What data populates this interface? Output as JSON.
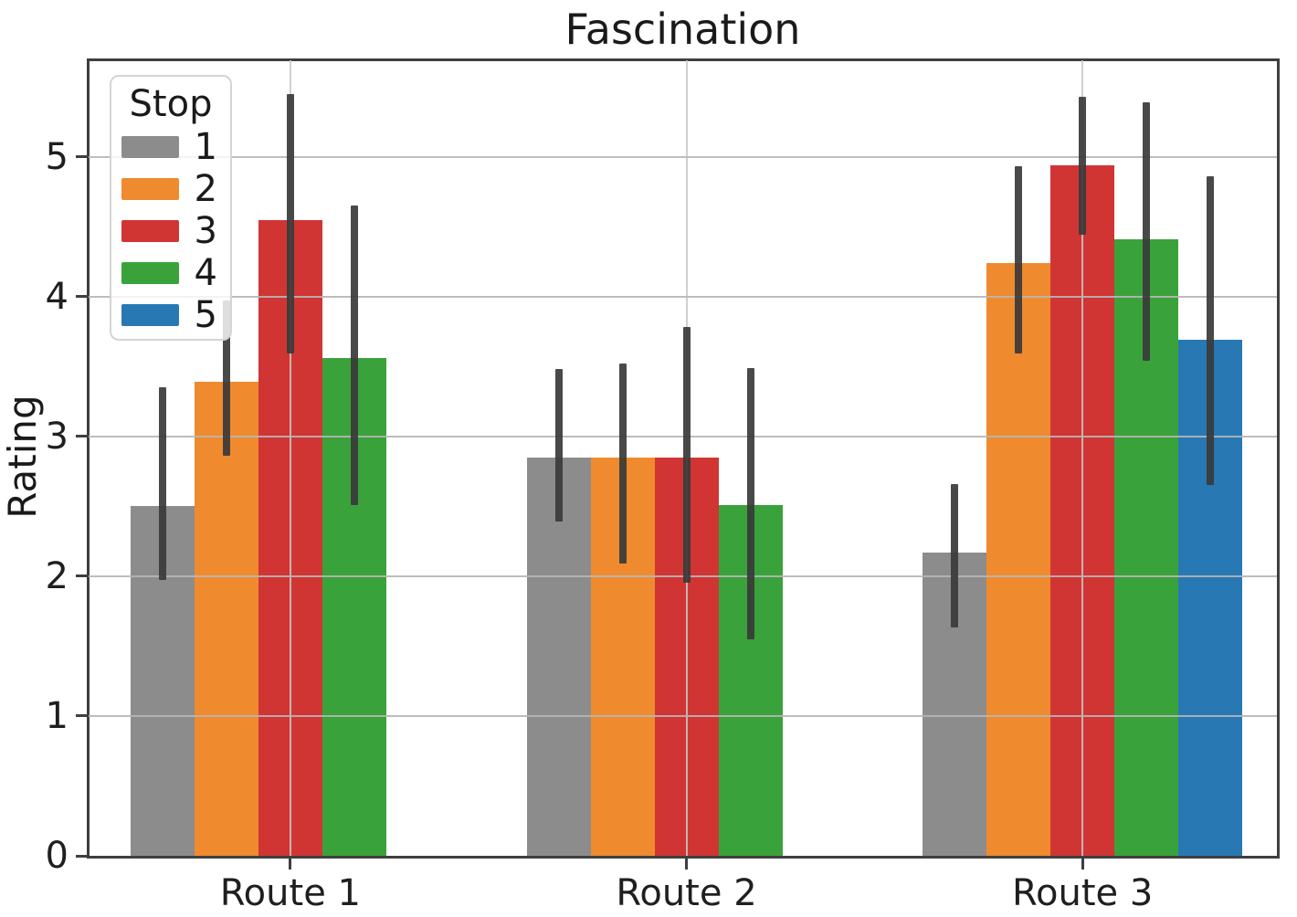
{
  "title": "Fascination",
  "axes": {
    "ylabel": "Rating",
    "ytick_labels": [
      "0",
      "1",
      "2",
      "3",
      "4",
      "5"
    ],
    "xtick_labels": [
      "Route 1",
      "Route 2",
      "Route 3"
    ]
  },
  "legend": {
    "title": "Stop",
    "entries": [
      {
        "label": "1",
        "color": "#8c8c8c"
      },
      {
        "label": "2",
        "color": "#ef8b2e"
      },
      {
        "label": "3",
        "color": "#d03534"
      },
      {
        "label": "4",
        "color": "#3aa23a"
      },
      {
        "label": "5",
        "color": "#2878b4"
      }
    ]
  },
  "style_colors": {
    "grid": "#b6b6b6",
    "spine": "#3f3f3f",
    "error_bar": "#3a3a3a"
  },
  "chart_data": {
    "type": "bar",
    "title": "Fascination",
    "xlabel": "",
    "ylabel": "Rating",
    "categories": [
      "Route 1",
      "Route 2",
      "Route 3"
    ],
    "ylim": [
      0,
      5.69
    ],
    "yticks": [
      0,
      1,
      2,
      3,
      4,
      5
    ],
    "grid": true,
    "legend_position": "upper left",
    "legend_title": "Stop",
    "series": [
      {
        "name": "1",
        "color": "#8c8c8c",
        "values": [
          2.5,
          2.85,
          2.17
        ],
        "err_low": [
          1.97,
          2.39,
          1.63
        ],
        "err_high": [
          3.35,
          3.48,
          2.66
        ]
      },
      {
        "name": "2",
        "color": "#ef8b2e",
        "values": [
          3.39,
          2.85,
          4.24
        ],
        "err_low": [
          2.86,
          2.09,
          3.59
        ],
        "err_high": [
          3.97,
          3.52,
          4.93
        ]
      },
      {
        "name": "3",
        "color": "#d03534",
        "values": [
          4.55,
          2.85,
          4.94
        ],
        "err_low": [
          3.59,
          1.95,
          4.44
        ],
        "err_high": [
          5.45,
          3.78,
          5.43
        ]
      },
      {
        "name": "4",
        "color": "#3aa23a",
        "values": [
          3.56,
          2.51,
          4.41
        ],
        "err_low": [
          2.51,
          1.55,
          3.54
        ],
        "err_high": [
          4.65,
          3.49,
          5.39
        ]
      },
      {
        "name": "5",
        "color": "#2878b4",
        "values": [
          null,
          null,
          3.69
        ],
        "err_low": [
          null,
          null,
          2.65
        ],
        "err_high": [
          null,
          null,
          4.86
        ]
      }
    ]
  }
}
